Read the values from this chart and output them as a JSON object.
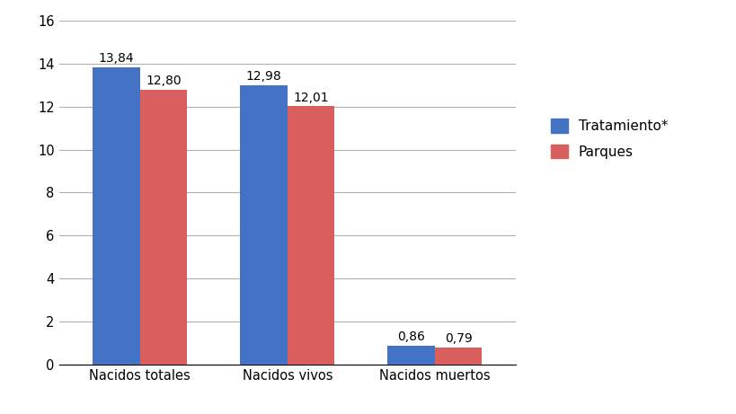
{
  "categories": [
    "Nacidos totales",
    "Nacidos vivos",
    "Nacidos muertos"
  ],
  "series": {
    "Tratamiento*": [
      13.84,
      12.98,
      0.86
    ],
    "Parques": [
      12.8,
      12.01,
      0.79
    ]
  },
  "colors": {
    "Tratamiento*": "#4472C4",
    "Parques": "#D95F5F"
  },
  "ylim": [
    0,
    16
  ],
  "yticks": [
    0,
    2,
    4,
    6,
    8,
    10,
    12,
    14,
    16
  ],
  "bar_width": 0.32,
  "label_fontsize": 10,
  "tick_fontsize": 10.5,
  "legend_fontsize": 11,
  "background_color": "#ffffff",
  "grid_color": "#b0b0b0"
}
